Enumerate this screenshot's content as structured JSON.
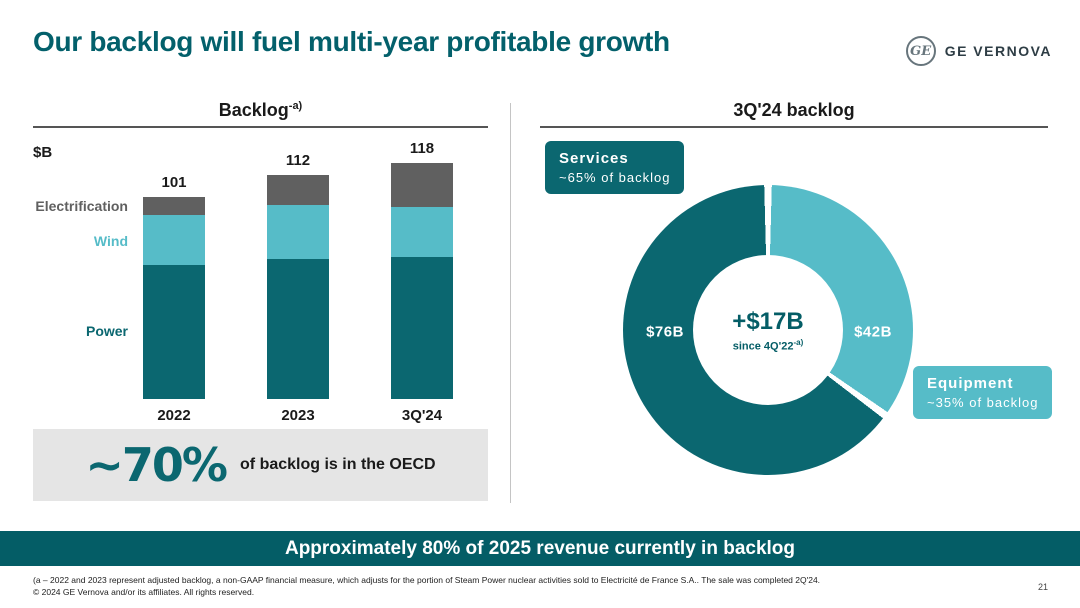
{
  "header": {
    "title": "Our backlog will fuel multi-year profitable growth",
    "logo": {
      "monogram": "GE",
      "wordmark": "GE VERNOVA"
    }
  },
  "left_panel": {
    "title": "Backlog",
    "title_sup": "-a)",
    "unit_label": "$B"
  },
  "callout": {
    "value": "~70%",
    "text": "of backlog is in the OECD"
  },
  "right_panel": {
    "title": "3Q'24 backlog"
  },
  "banner": {
    "text": "Approximately 80% of 2025 revenue currently in backlog"
  },
  "footer": {
    "footnote1": "(a – 2022 and 2023 represent adjusted backlog, a non-GAAP financial measure, which adjusts for the portion of Steam Power nuclear activities sold to Electricité de France S.A.. The sale was completed 2Q'24.",
    "footnote2": "© 2024 GE Vernova and/or its affiliates. All rights reserved.",
    "page_number": "21"
  },
  "colors": {
    "dark_teal": "#0b6770",
    "light_teal": "#56bcc8",
    "gray": "#606060",
    "banner_teal": "#045d66",
    "callout_bg": "#e5e5e5"
  },
  "chart_data": [
    {
      "type": "bar",
      "subtype": "stacked",
      "title": "Backlog -a)",
      "unit": "$B",
      "categories": [
        "2022",
        "2023",
        "3Q'24"
      ],
      "totals": [
        101,
        112,
        118
      ],
      "series": [
        {
          "name": "Power",
          "color": "#0b6770",
          "values": [
            67,
            70,
            71
          ]
        },
        {
          "name": "Wind",
          "color": "#56bcc8",
          "values": [
            25,
            27,
            25
          ]
        },
        {
          "name": "Electrification",
          "color": "#606060",
          "values": [
            9,
            15,
            22
          ]
        }
      ],
      "ylim": [
        0,
        130
      ],
      "grid": false,
      "legend_position": "left-of-bars"
    },
    {
      "type": "pie",
      "subtype": "donut",
      "title": "3Q'24 backlog",
      "slices": [
        {
          "name": "Services",
          "share_label": "~65% of backlog",
          "value_label": "$76B",
          "percent": 65,
          "color": "#0b6770"
        },
        {
          "name": "Equipment",
          "share_label": "~35% of backlog",
          "value_label": "$42B",
          "percent": 35,
          "color": "#56bcc8"
        }
      ],
      "center": {
        "value": "+$17B",
        "caption": "since 4Q'22",
        "caption_sup": "-a)"
      }
    }
  ]
}
